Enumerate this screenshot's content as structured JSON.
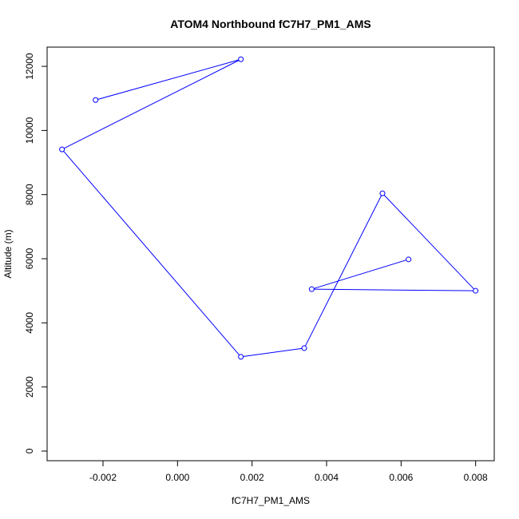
{
  "chart_data": {
    "type": "line",
    "title": "ATOM4 Northbound fC7H7_PM1_AMS",
    "xlabel": "fC7H7_PM1_AMS",
    "ylabel": "Altitude (m)",
    "xlim": [
      -0.0035,
      0.0085
    ],
    "ylim": [
      -300,
      12600
    ],
    "x_ticks": [
      -0.002,
      0.0,
      0.002,
      0.004,
      0.006,
      0.008
    ],
    "x_tick_labels": [
      "-0.002",
      "0.000",
      "0.002",
      "0.004",
      "0.006",
      "0.008"
    ],
    "y_ticks": [
      0,
      2000,
      4000,
      6000,
      8000,
      10000,
      12000
    ],
    "y_tick_labels": [
      "0",
      "2000",
      "4000",
      "6000",
      "8000",
      "10000",
      "12000"
    ],
    "grid": false,
    "series": [
      {
        "color": "#0000ff",
        "marker": "open-circle",
        "x": [
          0.0062,
          0.0036,
          0.008,
          0.0055,
          0.0034,
          0.0017,
          -0.0031,
          0.0017,
          -0.0022
        ],
        "y": [
          5980,
          5050,
          5000,
          8040,
          3210,
          2940,
          9410,
          12220,
          10950
        ]
      }
    ]
  }
}
